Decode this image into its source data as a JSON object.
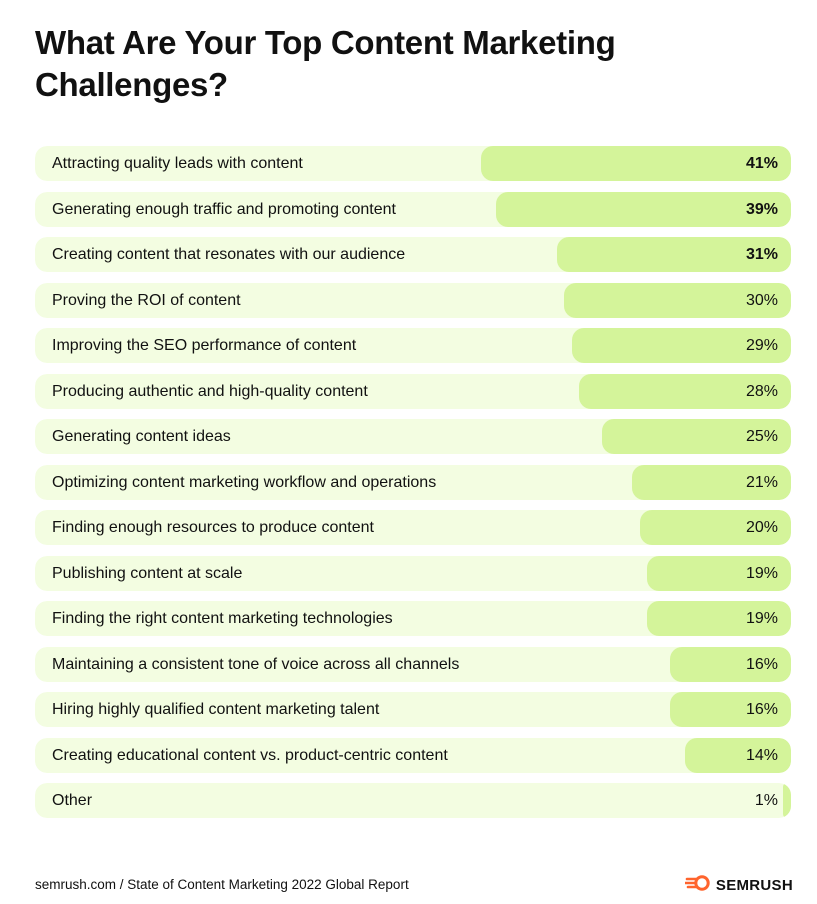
{
  "title": "What Are Your Top Content Marketing\nChallenges?",
  "footer": {
    "source": "semrush.com / State of Content Marketing 2022 Global Report",
    "brand": "SEMRUSH"
  },
  "colors": {
    "row_background": "#F3FDE1",
    "bar": "#D4F49A",
    "brand_accent": "#FF642D"
  },
  "chart_data": {
    "type": "bar",
    "orientation": "horizontal",
    "title": "What Are Your Top Content Marketing Challenges?",
    "xlim": [
      0,
      100
    ],
    "categories": [
      "Attracting quality leads with content",
      "Generating enough traffic and promoting content",
      "Creating content that resonates with our audience",
      "Proving the ROI of content",
      "Improving the SEO performance of content",
      "Producing authentic and high-quality content",
      "Generating content ideas",
      "Optimizing content marketing workflow and operations",
      "Finding enough resources to produce content",
      "Publishing content at scale",
      "Finding the right content marketing technologies",
      "Maintaining a consistent tone of voice across all channels",
      "Hiring highly qualified content marketing talent",
      "Creating educational content vs. product-centric content",
      "Other"
    ],
    "values": [
      41,
      39,
      31,
      30,
      29,
      28,
      25,
      21,
      20,
      19,
      19,
      16,
      16,
      14,
      1
    ],
    "value_labels": [
      "41%",
      "39%",
      "31%",
      "30%",
      "29%",
      "28%",
      "25%",
      "21%",
      "20%",
      "19%",
      "19%",
      "16%",
      "16%",
      "14%",
      "1%"
    ],
    "bold_top_n": 3
  }
}
